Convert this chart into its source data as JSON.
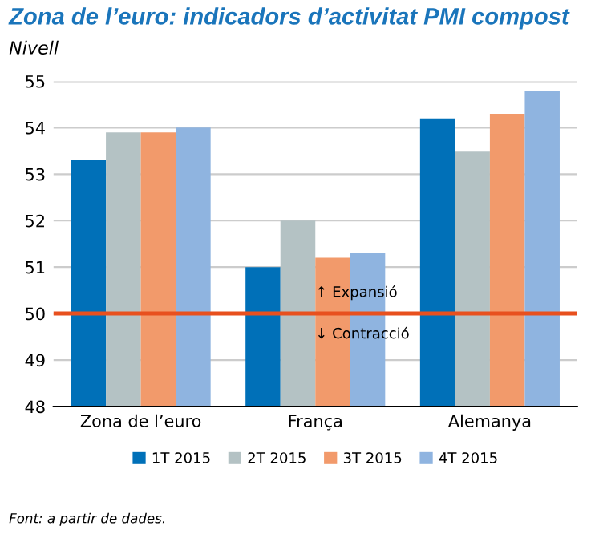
{
  "chart_data": {
    "type": "bar",
    "title": "Zona de l’euro: indicadors d’activitat PMI compost",
    "subtitle": "Nivell",
    "categories": [
      "Zona de l’euro",
      "França",
      "Alemanya"
    ],
    "series": [
      {
        "name": "1T 2015",
        "color": "#0070b8",
        "values": [
          53.3,
          51.0,
          54.2
        ]
      },
      {
        "name": "2T 2015",
        "color": "#b4c2c4",
        "values": [
          53.9,
          52.0,
          53.5
        ]
      },
      {
        "name": "3T 2015",
        "color": "#f29a6b",
        "values": [
          53.9,
          51.2,
          54.3
        ]
      },
      {
        "name": "4T 2015",
        "color": "#8fb4e0",
        "values": [
          54.0,
          51.3,
          54.8
        ]
      }
    ],
    "ylim": [
      48,
      55
    ],
    "yticks": [
      48,
      49,
      50,
      51,
      52,
      53,
      54,
      55
    ],
    "grid": "y",
    "legend": "bottom",
    "ref_lines": [
      {
        "axis": "y",
        "value": 50,
        "color": "#e8501e"
      }
    ],
    "annotations": [
      {
        "text": "↑ Expansió",
        "x": "França",
        "y": 50.45
      },
      {
        "text": "↓ Contracció",
        "x": "França",
        "y": 49.55
      },
      "Font: a partir de dades."
    ]
  }
}
